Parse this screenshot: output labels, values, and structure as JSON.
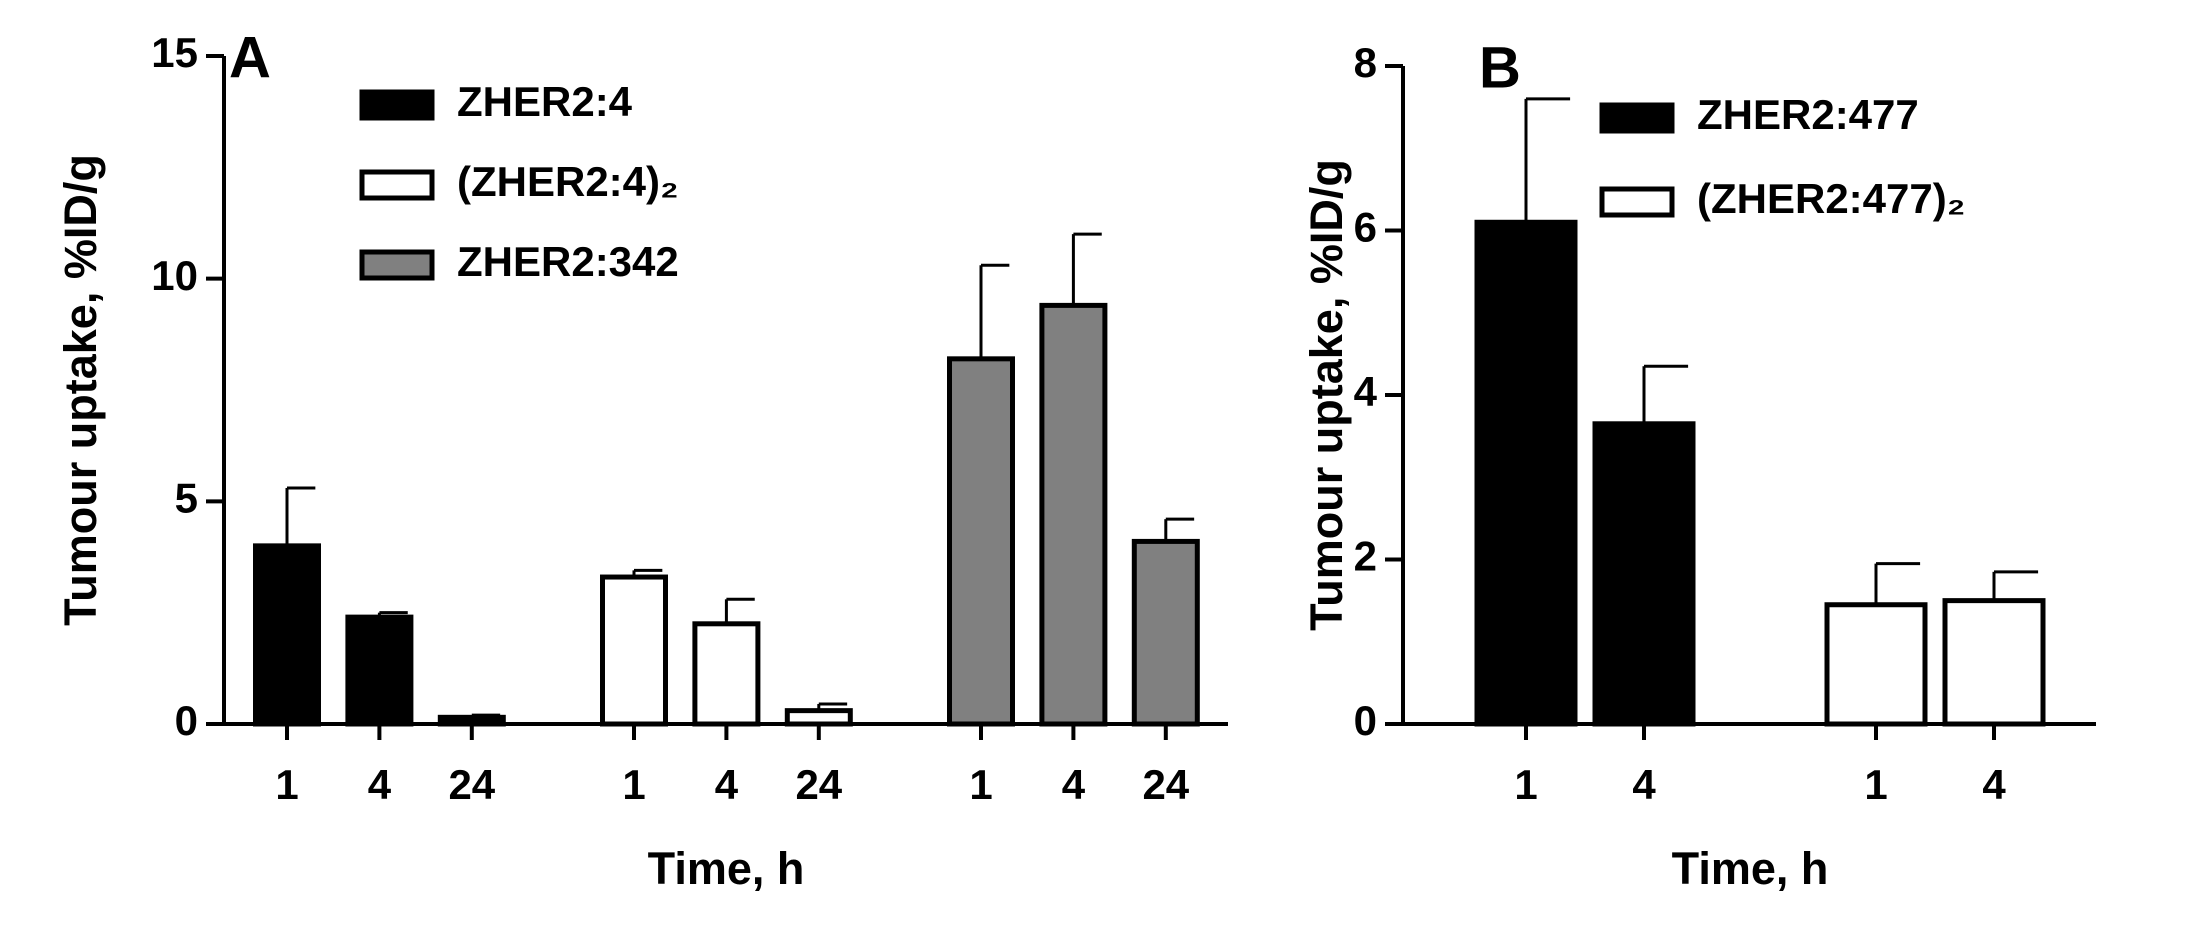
{
  "chart_data": [
    {
      "type": "bar",
      "label": "A",
      "x_label": "Time, h",
      "y_label": "Tumour uptake, %ID/g",
      "ylim": [
        0,
        15
      ],
      "yticks": [
        0,
        5,
        10,
        15
      ],
      "series": [
        {
          "name": "ZHER2:4",
          "color": "#000000",
          "categories": [
            "1",
            "4",
            "24"
          ],
          "values": [
            4.0,
            2.4,
            0.15
          ],
          "errors": [
            1.3,
            0.1,
            0.05
          ]
        },
        {
          "name": "(ZHER2:4)₂",
          "color": "#ffffff",
          "categories": [
            "1",
            "4",
            "24"
          ],
          "values": [
            3.3,
            2.25,
            0.3
          ],
          "errors": [
            0.15,
            0.55,
            0.15
          ]
        },
        {
          "name": "ZHER2:342",
          "color": "#808080",
          "categories": [
            "1",
            "4",
            "24"
          ],
          "values": [
            8.2,
            9.4,
            4.1
          ],
          "errors": [
            2.1,
            1.6,
            0.5
          ]
        }
      ]
    },
    {
      "type": "bar",
      "label": "B",
      "x_label": "Time, h",
      "y_label": "Tumour uptake, %ID/g",
      "ylim": [
        0,
        8
      ],
      "yticks": [
        0,
        2,
        4,
        6,
        8
      ],
      "series": [
        {
          "name": "ZHER2:477",
          "color": "#000000",
          "categories": [
            "1",
            "4"
          ],
          "values": [
            6.1,
            3.65
          ],
          "errors": [
            1.5,
            0.7
          ]
        },
        {
          "name": "(ZHER2:477)₂",
          "color": "#ffffff",
          "categories": [
            "1",
            "4"
          ],
          "values": [
            1.45,
            1.5
          ],
          "errors": [
            0.5,
            0.35
          ]
        }
      ]
    }
  ]
}
